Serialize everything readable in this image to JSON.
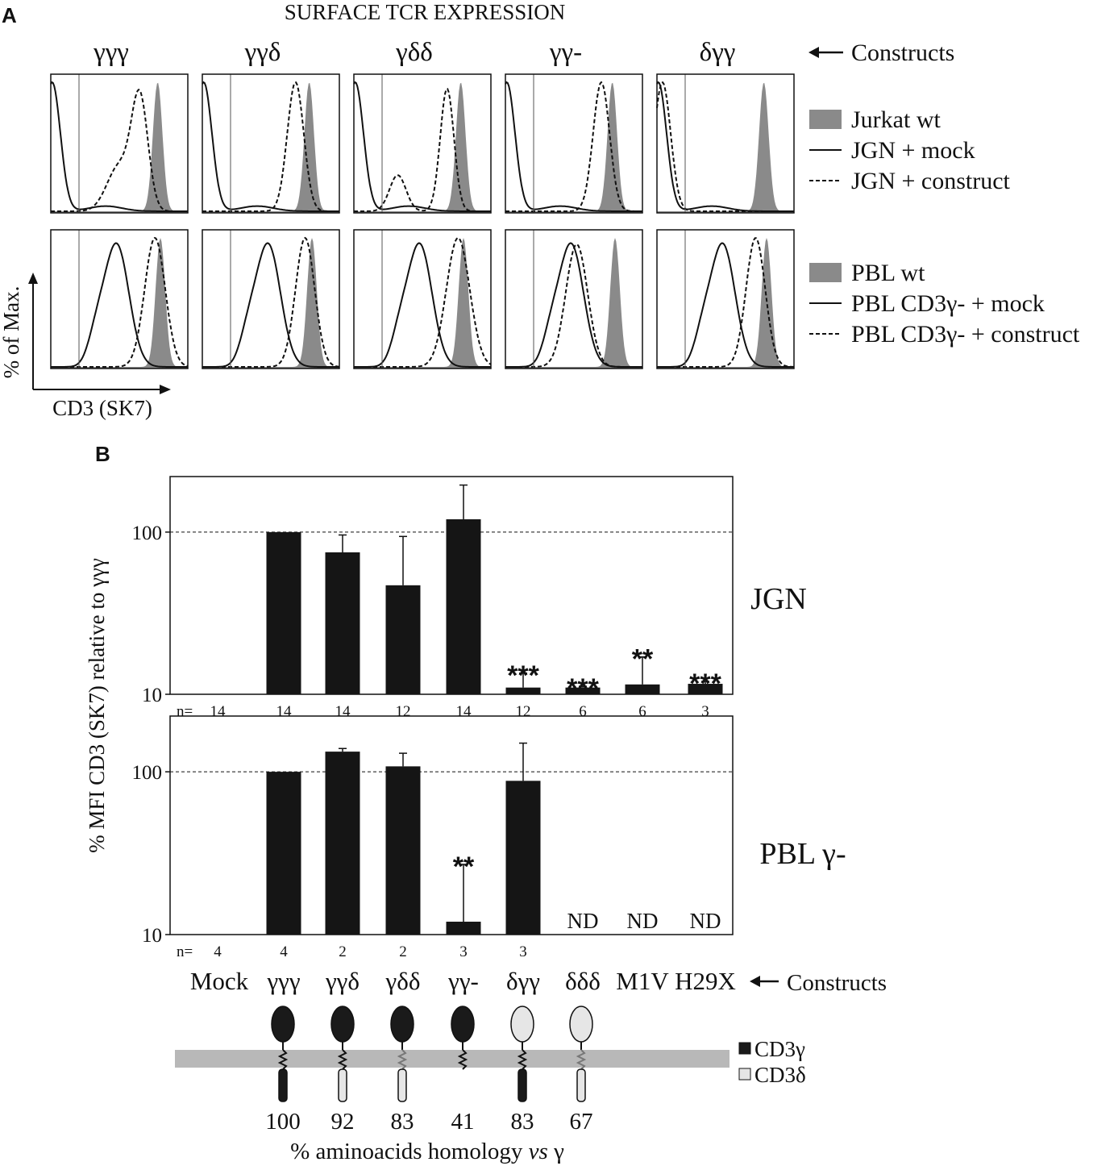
{
  "panel_a": {
    "letter": "A",
    "title": "SURFACE TCR EXPRESSION",
    "constructs_label": "Constructs",
    "columns": [
      "γγγ",
      "γγδ",
      "γδδ",
      "γγ-",
      "δγγ"
    ],
    "y_axis_label": "% of Max.",
    "x_axis_label": "CD3 (SK7)",
    "legend_top": [
      {
        "style": "filled",
        "label": "Jurkat wt"
      },
      {
        "style": "solid",
        "label": "JGN + mock"
      },
      {
        "style": "dashed",
        "label": "JGN + construct"
      }
    ],
    "legend_bottom": [
      {
        "style": "filled",
        "label": "PBL wt"
      },
      {
        "style": "solid",
        "label": "PBL CD3γ- + mock"
      },
      {
        "style": "dashed",
        "label": "PBL CD3γ- + construct"
      }
    ]
  },
  "panel_b": {
    "letter": "B",
    "y_axis_label": "% MFI CD3 (SK7) relative to γγγ",
    "constructs_label": "Constructs",
    "n_prefix": "n=",
    "homology_label_prefix": "% aminoacids homology ",
    "homology_label_vs": "vs",
    "homology_label_suffix": " γ",
    "homology_values": [
      "100",
      "92",
      "83",
      "41",
      "83",
      "67"
    ],
    "domain_legend": [
      {
        "color": "#1a1a1a",
        "label": "CD3γ"
      },
      {
        "color": "#e6e6e6",
        "label": "CD3δ"
      }
    ]
  },
  "chart_data": [
    {
      "type": "histogram",
      "panel": "A (top row)",
      "cell": "JGN",
      "x_label": "CD3 (SK7)",
      "y_label": "% of Max.",
      "columns": [
        "γγγ",
        "γγδ",
        "γδδ",
        "γγ-",
        "δγγ"
      ],
      "series": [
        "Jurkat wt",
        "JGN + mock",
        "JGN + construct"
      ]
    },
    {
      "type": "histogram",
      "panel": "A (bottom row)",
      "cell": "PBL",
      "x_label": "CD3 (SK7)",
      "y_label": "% of Max.",
      "columns": [
        "γγγ",
        "γγδ",
        "γδδ",
        "γγ-",
        "δγγ"
      ],
      "series": [
        "PBL wt",
        "PBL CD3γ- + mock",
        "PBL CD3γ- + construct"
      ]
    },
    {
      "type": "bar",
      "panel": "B (top)",
      "label": "JGN",
      "y_scale": "log",
      "ylim": [
        10,
        220
      ],
      "yticks": [
        10,
        100
      ],
      "reference_line": 100,
      "categories": [
        "Mock",
        "γγγ",
        "γγδ",
        "γδδ",
        "γγ-",
        "δγγ",
        "δδδ",
        "M1V",
        "H29X"
      ],
      "values": [
        null,
        100,
        75,
        47,
        120,
        11,
        11,
        11.5,
        11.6
      ],
      "error_upper": [
        null,
        null,
        96,
        94,
        195,
        13.5,
        11.2,
        17,
        12
      ],
      "n": [
        "14",
        "14",
        "14",
        "12",
        "14",
        "12",
        "6",
        "6",
        "3"
      ],
      "significance": [
        "",
        "",
        "",
        "",
        "",
        "***",
        "***",
        "**",
        "***"
      ]
    },
    {
      "type": "bar",
      "panel": "B (bottom)",
      "label": "PBL γ-",
      "y_scale": "log",
      "ylim": [
        10,
        220
      ],
      "yticks": [
        10,
        100
      ],
      "reference_line": 100,
      "categories": [
        "Mock",
        "γγγ",
        "γγδ",
        "γδδ",
        "γγ-",
        "δγγ",
        "δδδ",
        "M1V",
        "H29X"
      ],
      "values": [
        null,
        100,
        133,
        108,
        12,
        88,
        null,
        null,
        null
      ],
      "error_upper": [
        null,
        null,
        139,
        130,
        27,
        150,
        null,
        null,
        null
      ],
      "n": [
        "4",
        "4",
        "2",
        "2",
        "3",
        "3",
        "",
        "",
        ""
      ],
      "significance": [
        "",
        "",
        "",
        "",
        "**",
        "",
        "",
        "",
        ""
      ],
      "not_determined": [
        "",
        "",
        "",
        "",
        "",
        "",
        "ND",
        "ND",
        "ND"
      ]
    }
  ]
}
